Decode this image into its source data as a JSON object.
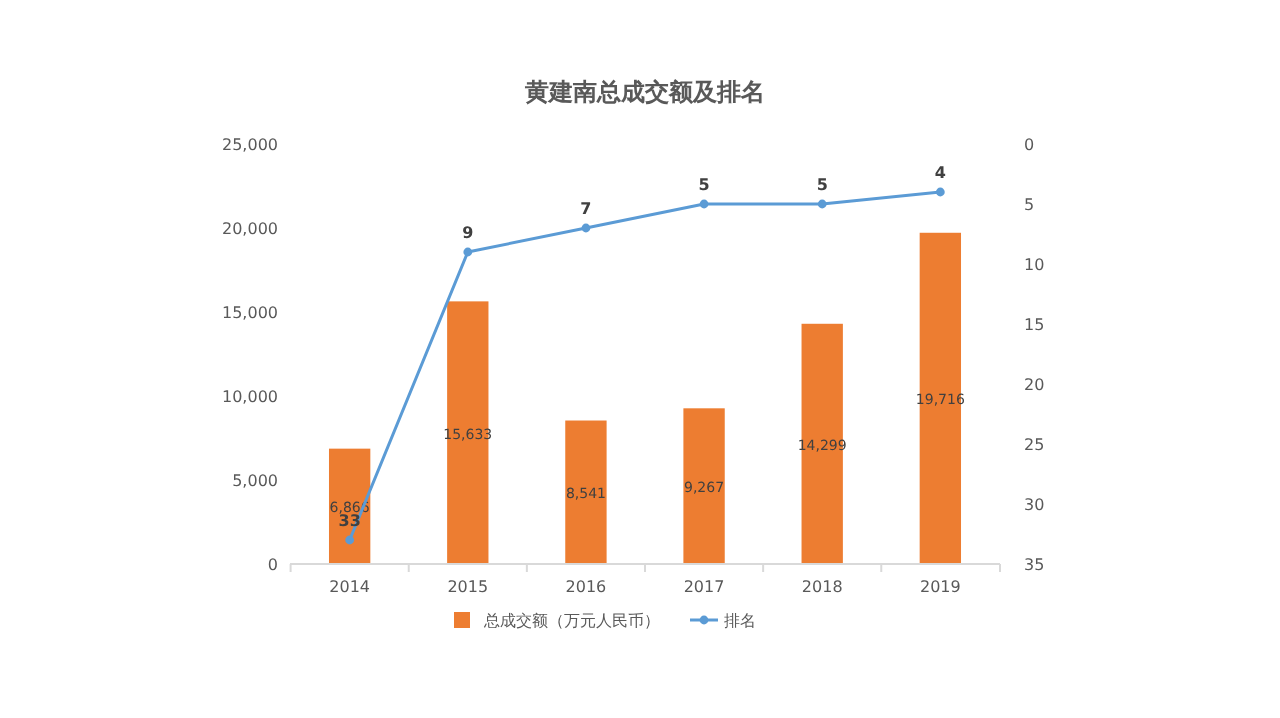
{
  "chart_data": {
    "type": "bar",
    "title": "黄建南总成交额及排名",
    "categories": [
      "2014",
      "2015",
      "2016",
      "2017",
      "2018",
      "2019"
    ],
    "series": [
      {
        "name": "总成交额（万元人民币）",
        "color": "#ed7d31",
        "values": [
          6866,
          15633,
          8541,
          9267,
          14299,
          19716
        ],
        "value_labels": [
          "6,866",
          "15,633",
          "8,541",
          "9,267",
          "14,299",
          "19,716"
        ]
      },
      {
        "name": "排名",
        "type": "line",
        "axis": "y2",
        "color": "#5b9bd5",
        "values": [
          33,
          9,
          7,
          5,
          5,
          4
        ],
        "value_labels": [
          "33",
          "9",
          "7",
          "5",
          "5",
          "4"
        ]
      }
    ],
    "ylim": [
      0,
      25000
    ],
    "yticks": [
      {
        "value": 0,
        "label": "0"
      },
      {
        "value": 5000,
        "label": "5,000"
      },
      {
        "value": 10000,
        "label": "10,000"
      },
      {
        "value": 15000,
        "label": "15,000"
      },
      {
        "value": 20000,
        "label": "20,000"
      },
      {
        "value": 25000,
        "label": "25,000"
      }
    ],
    "y2lim": [
      35,
      0
    ],
    "y2ticks": [
      0,
      5,
      10,
      15,
      20,
      25,
      30,
      35
    ],
    "legend": "bottom",
    "marker": "circle",
    "grid": false
  }
}
